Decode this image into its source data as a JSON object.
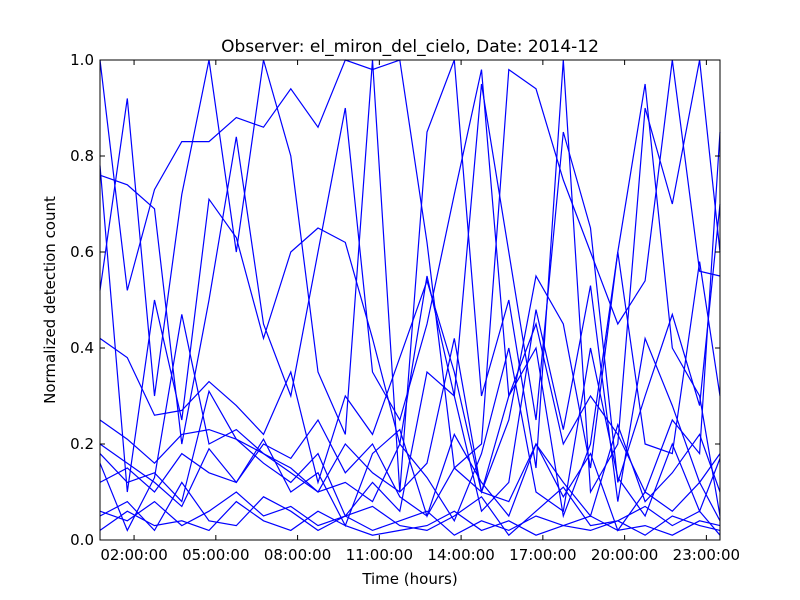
{
  "chart_data": {
    "type": "line",
    "title": "Observer: el_miron_del_cielo, Date: 2014-12",
    "xlabel": "Time (hours)",
    "ylabel": "Normalized detection count",
    "xlim": [
      0.75,
      23.5
    ],
    "ylim": [
      0,
      1
    ],
    "xticks": [
      2,
      5,
      8,
      11,
      14,
      17,
      20,
      23
    ],
    "xtick_labels": [
      "02:00:00",
      "05:00:00",
      "08:00:00",
      "11:00:00",
      "14:00:00",
      "17:00:00",
      "20:00:00",
      "23:00:00"
    ],
    "yticks": [
      0,
      0.2,
      0.4,
      0.6,
      0.8,
      1.0
    ],
    "ytick_labels": [
      "0.0",
      "0.2",
      "0.4",
      "0.6",
      "0.8",
      "1.0"
    ],
    "grid": false,
    "legend": "none",
    "line_color": "#0000ff",
    "x": [
      0.75,
      1.75,
      2.75,
      3.75,
      4.75,
      5.75,
      6.75,
      7.75,
      8.75,
      9.75,
      10.75,
      11.75,
      12.75,
      13.75,
      14.75,
      15.75,
      16.75,
      17.75,
      18.75,
      19.75,
      20.75,
      21.75,
      22.75,
      23.5
    ],
    "series": [
      {
        "values": [
          1.0,
          0.52,
          0.73,
          0.83,
          0.83,
          0.88,
          0.86,
          0.94,
          0.86,
          1.0,
          0.98,
          1.0,
          0.62,
          0.15,
          0.2,
          0.98,
          0.94,
          0.75,
          0.6,
          0.45,
          0.54,
          1.0,
          0.56,
          0.55
        ]
      },
      {
        "values": [
          0.76,
          0.74,
          0.69,
          0.2,
          0.5,
          0.84,
          0.45,
          0.3,
          0.6,
          0.9,
          0.35,
          0.25,
          0.45,
          0.72,
          0.98,
          0.3,
          0.4,
          0.05,
          0.2,
          0.6,
          0.95,
          0.4,
          0.3,
          0.05
        ]
      },
      {
        "values": [
          0.52,
          0.92,
          0.3,
          0.72,
          1.0,
          0.6,
          1.0,
          0.8,
          0.35,
          0.22,
          1.0,
          0.1,
          0.85,
          1.0,
          0.3,
          0.5,
          0.15,
          1.0,
          0.1,
          0.2,
          0.9,
          0.7,
          1.0,
          0.6
        ]
      },
      {
        "values": [
          0.78,
          0.1,
          0.5,
          0.25,
          0.71,
          0.63,
          0.42,
          0.6,
          0.65,
          0.62,
          0.42,
          0.2,
          0.55,
          0.3,
          0.95,
          0.6,
          0.25,
          0.85,
          0.65,
          0.12,
          0.3,
          0.47,
          0.28,
          0.7
        ]
      },
      {
        "values": [
          0.25,
          0.21,
          0.16,
          0.22,
          0.23,
          0.21,
          0.18,
          0.15,
          0.1,
          0.2,
          0.14,
          0.1,
          0.16,
          0.42,
          0.1,
          0.3,
          0.45,
          0.2,
          0.3,
          0.22,
          0.1,
          0.25,
          0.18,
          0.85
        ]
      },
      {
        "values": [
          0.18,
          0.12,
          0.14,
          0.08,
          0.31,
          0.21,
          0.16,
          0.12,
          0.18,
          0.05,
          0.12,
          0.06,
          0.35,
          0.3,
          0.06,
          0.12,
          0.48,
          0.23,
          0.53,
          0.08,
          0.42,
          0.28,
          0.12,
          0.18
        ]
      },
      {
        "values": [
          0.06,
          0.04,
          0.08,
          0.03,
          0.06,
          0.1,
          0.05,
          0.07,
          0.03,
          0.05,
          0.02,
          0.04,
          0.06,
          0.01,
          0.04,
          0.02,
          0.05,
          0.03,
          0.02,
          0.04,
          0.01,
          0.05,
          0.03,
          0.02
        ]
      },
      {
        "values": [
          0.12,
          0.15,
          0.1,
          0.18,
          0.14,
          0.12,
          0.2,
          0.17,
          0.25,
          0.14,
          0.2,
          0.09,
          0.05,
          0.15,
          0.1,
          0.08,
          0.2,
          0.12,
          0.05,
          0.24,
          0.08,
          0.14,
          0.22,
          0.1
        ]
      },
      {
        "values": [
          0.02,
          0.06,
          0.03,
          0.04,
          0.02,
          0.08,
          0.04,
          0.02,
          0.06,
          0.03,
          0.01,
          0.02,
          0.03,
          0.06,
          0.02,
          0.04,
          0.01,
          0.03,
          0.05,
          0.02,
          0.03,
          0.01,
          0.04,
          0.03
        ]
      },
      {
        "values": [
          0.42,
          0.38,
          0.26,
          0.27,
          0.33,
          0.28,
          0.22,
          0.35,
          0.12,
          0.3,
          0.22,
          0.38,
          0.54,
          0.35,
          0.1,
          0.25,
          0.55,
          0.45,
          0.15,
          0.6,
          0.2,
          0.18,
          0.58,
          0.3
        ]
      },
      {
        "values": [
          0.2,
          0.16,
          0.12,
          0.07,
          0.19,
          0.12,
          0.21,
          0.1,
          0.14,
          0.03,
          0.18,
          0.23,
          0.05,
          0.22,
          0.12,
          0.05,
          0.2,
          0.09,
          0.18,
          0.02,
          0.1,
          0.06,
          0.12,
          0.04
        ]
      },
      {
        "values": [
          0.05,
          0.08,
          0.02,
          0.12,
          0.04,
          0.03,
          0.09,
          0.06,
          0.02,
          0.05,
          0.07,
          0.03,
          0.02,
          0.05,
          0.09,
          0.01,
          0.06,
          0.11,
          0.03,
          0.04,
          0.07,
          0.03,
          0.06,
          0.01
        ]
      },
      {
        "values": [
          0.16,
          0.02,
          0.13,
          0.47,
          0.2,
          0.23,
          0.18,
          0.14,
          0.1,
          0.12,
          0.08,
          0.2,
          0.13,
          0.04,
          0.18,
          0.4,
          0.1,
          0.06,
          0.4,
          0.13,
          0.05,
          0.2,
          0.06,
          0.17
        ]
      }
    ]
  }
}
